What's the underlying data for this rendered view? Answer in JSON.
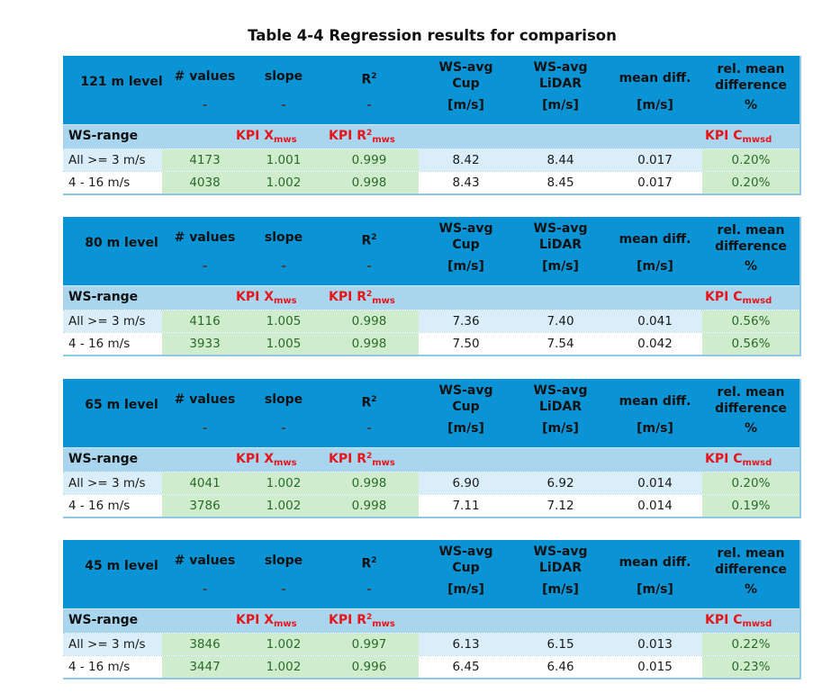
{
  "title": "Table 4-4 Regression results for comparison",
  "headers": {
    "values": "# values",
    "slope": "slope",
    "r2": "R",
    "r2_sup": "2",
    "ws_cup_1": "WS-avg",
    "ws_cup_2": "Cup",
    "ws_lidar_1": "WS-avg",
    "ws_lidar_2": "LiDAR",
    "mean_diff": "mean diff.",
    "rel_mean_1": "rel. mean",
    "rel_mean_2": "difference"
  },
  "units": {
    "values": "-",
    "slope": "-",
    "r2": "-",
    "cup": "[m/s]",
    "lidar": "[m/s]",
    "mean_diff": "[m/s]",
    "rel": "%"
  },
  "ws_range_label": "WS-range",
  "kpi": {
    "x": "KPI X",
    "x_sub": "mws",
    "r2": "KPI R",
    "r2_sup": "2",
    "r2_sub": "mws",
    "c": "KPI C",
    "c_sub": "mwsd"
  },
  "blocks": [
    {
      "level": "121 m level",
      "rows": [
        {
          "range": "All >= 3 m/s",
          "n": "4173",
          "slope": "1.001",
          "r2": "0.999",
          "cup": "8.42",
          "lidar": "8.44",
          "md": "0.017",
          "rel": "0.20%"
        },
        {
          "range": " 4 - 16 m/s",
          "n": "4038",
          "slope": "1.002",
          "r2": "0.998",
          "cup": "8.43",
          "lidar": "8.45",
          "md": "0.017",
          "rel": "0.20%"
        }
      ]
    },
    {
      "level": "80 m level",
      "rows": [
        {
          "range": "All >= 3 m/s",
          "n": "4116",
          "slope": "1.005",
          "r2": "0.998",
          "cup": "7.36",
          "lidar": "7.40",
          "md": "0.041",
          "rel": "0.56%"
        },
        {
          "range": " 4 - 16 m/s",
          "n": "3933",
          "slope": "1.005",
          "r2": "0.998",
          "cup": "7.50",
          "lidar": "7.54",
          "md": "0.042",
          "rel": "0.56%"
        }
      ]
    },
    {
      "level": "65 m level",
      "rows": [
        {
          "range": "All >= 3 m/s",
          "n": "4041",
          "slope": "1.002",
          "r2": "0.998",
          "cup": "6.90",
          "lidar": "6.92",
          "md": "0.014",
          "rel": "0.20%"
        },
        {
          "range": " 4 - 16 m/s",
          "n": "3786",
          "slope": "1.002",
          "r2": "0.998",
          "cup": "7.11",
          "lidar": "7.12",
          "md": "0.014",
          "rel": "0.19%"
        }
      ]
    },
    {
      "level": "45 m level",
      "rows": [
        {
          "range": "All >= 3 m/s",
          "n": "3846",
          "slope": "1.002",
          "r2": "0.997",
          "cup": "6.13",
          "lidar": "6.15",
          "md": "0.013",
          "rel": "0.22%"
        },
        {
          "range": " 4 - 16 m/s",
          "n": "3447",
          "slope": "1.002",
          "r2": "0.996",
          "cup": "6.45",
          "lidar": "6.46",
          "md": "0.015",
          "rel": "0.23%"
        }
      ]
    }
  ]
}
